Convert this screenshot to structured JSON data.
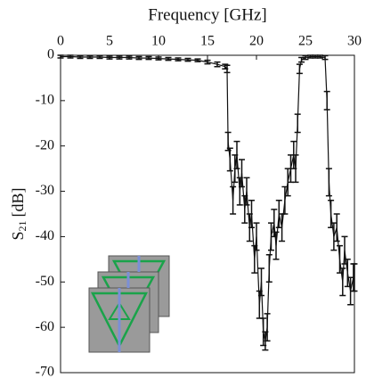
{
  "chart_data": {
    "type": "line",
    "title": "Frequency [GHz]",
    "ylabel": {
      "symbol": "S",
      "subscript": "21",
      "unit": "[dB]"
    },
    "xlim": [
      0,
      30
    ],
    "xticks": [
      0,
      5,
      10,
      15,
      20,
      25,
      30
    ],
    "ylim": [
      -70,
      0
    ],
    "yticks": [
      -70,
      -60,
      -50,
      -40,
      -30,
      -20,
      -10,
      0
    ],
    "color": "#111111",
    "x": [
      0,
      1,
      2,
      3,
      4,
      5,
      6,
      7,
      8,
      9,
      10,
      11,
      12,
      13,
      14,
      15,
      16,
      16.8,
      17,
      17.1,
      17.3,
      17.6,
      17.8,
      18,
      18.3,
      18.5,
      18.8,
      19,
      19.3,
      19.5,
      19.8,
      20,
      20.3,
      20.5,
      20.7,
      20.9,
      21.1,
      21.3,
      21.5,
      21.8,
      22,
      22.3,
      22.6,
      22.9,
      23.2,
      23.5,
      23.8,
      24,
      24.2,
      24.4,
      24.6,
      25,
      25.5,
      26,
      26.5,
      27,
      27.2,
      27.4,
      27.6,
      27.9,
      28.2,
      28.5,
      28.8,
      29,
      29.3,
      29.6,
      29.9,
      30
    ],
    "values": [
      -0.3,
      -0.3,
      -0.4,
      -0.4,
      -0.4,
      -0.5,
      -0.5,
      -0.5,
      -0.6,
      -0.6,
      -0.7,
      -0.8,
      -0.9,
      -1,
      -1.1,
      -1.5,
      -2,
      -2.5,
      -3,
      -19,
      -23,
      -32,
      -25,
      -22,
      -30,
      -26,
      -34,
      -30,
      -38,
      -35,
      -45,
      -40,
      -55,
      -50,
      -61,
      -63,
      -60,
      -47,
      -40,
      -37,
      -42,
      -35,
      -38,
      -32,
      -28,
      -25,
      -22,
      -25,
      -15,
      -3,
      -1,
      -0.5,
      -0.3,
      -0.3,
      -0.3,
      -0.5,
      -10,
      -28,
      -35,
      -40,
      -38,
      -45,
      -50,
      -43,
      -48,
      -52,
      -49,
      -49
    ],
    "errors": [
      0.3,
      0.3,
      0.3,
      0.3,
      0.3,
      0.3,
      0.3,
      0.3,
      0.3,
      0.3,
      0.3,
      0.3,
      0.3,
      0.3,
      0.3,
      0.4,
      0.5,
      0.5,
      0.8,
      2,
      2.5,
      3,
      3,
      3,
      3,
      3,
      3,
      3,
      3,
      3,
      3,
      3,
      3,
      3,
      3,
      2,
      3,
      3,
      3,
      3,
      3,
      3,
      3,
      3,
      3,
      3,
      3,
      3,
      2,
      1,
      0.5,
      0.4,
      0.3,
      0.3,
      0.3,
      0.4,
      2,
      3,
      3,
      3,
      3,
      3,
      3,
      3,
      3,
      3,
      3,
      3
    ]
  }
}
